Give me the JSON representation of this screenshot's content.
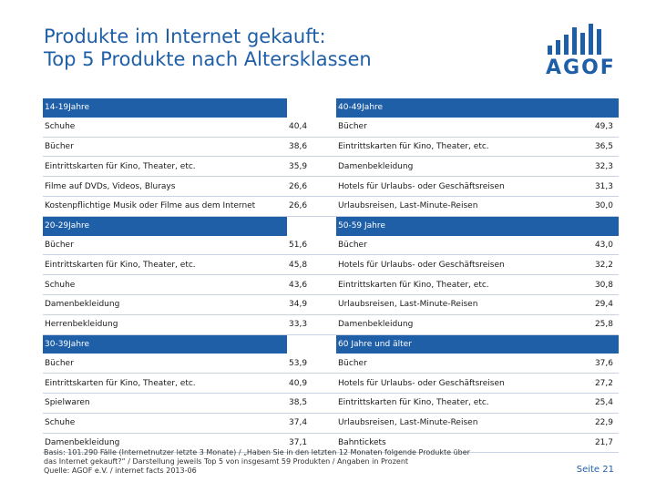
{
  "title": {
    "line1": "Produkte im Internet gekauft:",
    "line2": "Top 5 Produkte nach Altersklassen"
  },
  "logo": {
    "text": "AGOF"
  },
  "brand_color": "#1f5fa8",
  "groups": [
    {
      "left": {
        "header": "14-19Jahre",
        "rows": [
          {
            "label": "Schuhe",
            "value": "40,4"
          },
          {
            "label": "Bücher",
            "value": "38,6"
          },
          {
            "label": "Eintrittskarten für Kino, Theater, etc.",
            "value": "35,9"
          },
          {
            "label": "Filme auf DVDs, Videos, Blurays",
            "value": "26,6"
          },
          {
            "label": "Kostenpflichtige Musik oder Filme aus dem Internet",
            "value": "26,6"
          }
        ]
      },
      "right": {
        "header": "40-49Jahre",
        "rows": [
          {
            "label": "Bücher",
            "value": "49,3"
          },
          {
            "label": "Eintrittskarten für Kino, Theater, etc.",
            "value": "36,5"
          },
          {
            "label": "Damenbekleidung",
            "value": "32,3"
          },
          {
            "label": "Hotels für Urlaubs- oder Geschäftsreisen",
            "value": "31,3"
          },
          {
            "label": "Urlaubsreisen, Last-Minute-Reisen",
            "value": "30,0"
          }
        ]
      }
    },
    {
      "left": {
        "header": "20-29Jahre",
        "rows": [
          {
            "label": "Bücher",
            "value": "51,6"
          },
          {
            "label": "Eintrittskarten für Kino, Theater, etc.",
            "value": "45,8"
          },
          {
            "label": "Schuhe",
            "value": "43,6"
          },
          {
            "label": "Damenbekleidung",
            "value": "34,9"
          },
          {
            "label": "Herrenbekleidung",
            "value": "33,3"
          }
        ]
      },
      "right": {
        "header": "50-59 Jahre",
        "rows": [
          {
            "label": "Bücher",
            "value": "43,0"
          },
          {
            "label": "Hotels für Urlaubs- oder Geschäftsreisen",
            "value": "32,2"
          },
          {
            "label": "Eintrittskarten für Kino, Theater, etc.",
            "value": "30,8"
          },
          {
            "label": "Urlaubsreisen, Last-Minute-Reisen",
            "value": "29,4"
          },
          {
            "label": "Damenbekleidung",
            "value": "25,8"
          }
        ]
      }
    },
    {
      "left": {
        "header": "30-39Jahre",
        "rows": [
          {
            "label": "Bücher",
            "value": "53,9"
          },
          {
            "label": "Eintrittskarten für Kino, Theater, etc.",
            "value": "40,9"
          },
          {
            "label": "Spielwaren",
            "value": "38,5"
          },
          {
            "label": "Schuhe",
            "value": "37,4"
          },
          {
            "label": "Damenbekleidung",
            "value": "37,1"
          }
        ]
      },
      "right": {
        "header": "60 Jahre und älter",
        "rows": [
          {
            "label": "Bücher",
            "value": "37,6"
          },
          {
            "label": "Hotels für Urlaubs- oder Geschäftsreisen",
            "value": "27,2"
          },
          {
            "label": "Eintrittskarten für Kino, Theater, etc.",
            "value": "25,4"
          },
          {
            "label": "Urlaubsreisen, Last-Minute-Reisen",
            "value": "22,9"
          },
          {
            "label": "Bahntickets",
            "value": "21,7"
          }
        ]
      }
    }
  ],
  "footer": {
    "line1": "Basis: 101.290 Fälle (Internetnutzer letzte 3 Monate) / „Haben Sie in den letzten 12 Monaten folgende Produkte über",
    "line2": "das Internet gekauft?“ / Darstellung jeweils Top 5 von insgesamt 59 Produkten / Angaben in Prozent",
    "line3": "Quelle: AGOF e.V. / internet facts 2013-06"
  },
  "page_label": "Seite 21"
}
